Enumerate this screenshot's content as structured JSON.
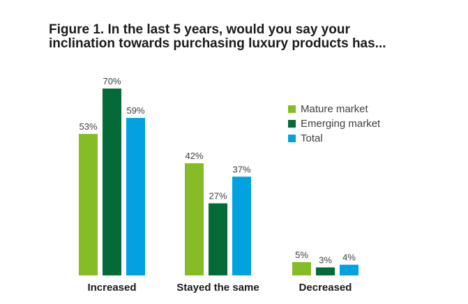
{
  "title_lines": [
    "Figure 1. In the last 5 years, would you say your",
    "inclination towards purchasing luxury products has..."
  ],
  "chart_data": {
    "type": "bar",
    "title": "Figure 1. In the last 5 years, would you say your inclination towards purchasing luxury products has...",
    "categories": [
      "Increased",
      "Stayed the same",
      "Decreased"
    ],
    "series": [
      {
        "name": "Mature market",
        "values": [
          53,
          42,
          5
        ],
        "color": "#86bc25"
      },
      {
        "name": "Emerging market",
        "values": [
          70,
          27,
          3
        ],
        "color": "#046a38"
      },
      {
        "name": "Total",
        "values": [
          59,
          37,
          4
        ],
        "color": "#00a3e0"
      }
    ],
    "value_suffix": "%",
    "ylim": [
      0,
      100
    ],
    "grid": false,
    "legend_position": "top-right"
  }
}
